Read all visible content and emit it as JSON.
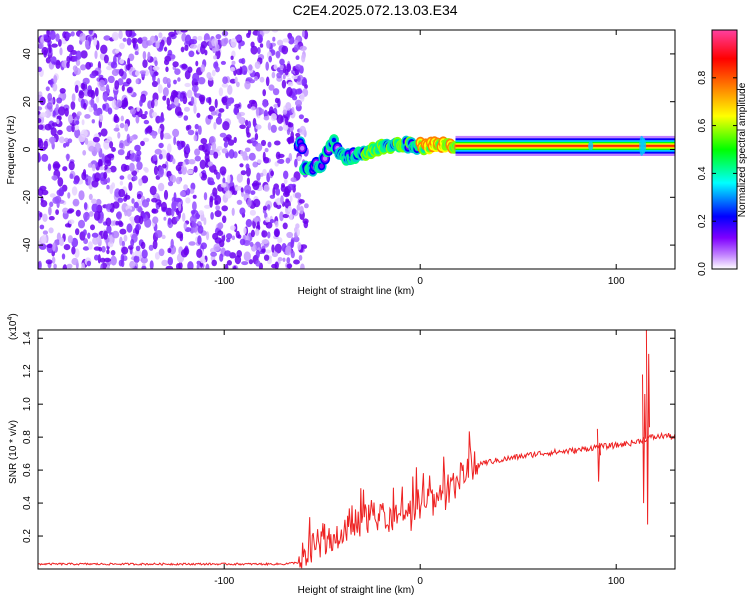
{
  "title": "C2E4.2025.072.13.03.E34",
  "chart_data": [
    {
      "type": "heatmap",
      "xlabel": "Height of straight line (km)",
      "ylabel": "Frequency (Hz)",
      "xlim": [
        -195,
        130
      ],
      "ylim": [
        -50,
        50
      ],
      "xticks": [
        -100,
        0,
        100
      ],
      "xtick_labels": [
        "-100",
        "0",
        "100"
      ],
      "yticks": [
        -40,
        -20,
        0,
        20,
        40
      ],
      "ytick_labels": [
        "-40",
        "-20",
        "0",
        "20",
        "40"
      ],
      "colorbar": {
        "label": "Normalized spectral amplitude",
        "range": [
          0.0,
          1.0
        ],
        "ticks": [
          0.0,
          0.2,
          0.4,
          0.6,
          0.8
        ],
        "tick_labels": [
          "0.0",
          "0.2",
          "0.4",
          "0.6",
          "0.8"
        ],
        "colors": [
          "#ffffff",
          "#c080ff",
          "#7f00ff",
          "#0000ff",
          "#00ffff",
          "#00ff00",
          "#ffff00",
          "#ff8000",
          "#ff0000",
          "#ff40a0"
        ]
      },
      "noise_region": {
        "x": [
          -195,
          -62
        ],
        "freq": [
          -50,
          50
        ]
      },
      "signal_track": [
        {
          "x": -60,
          "freq": -9
        },
        {
          "x": -50,
          "freq": -6
        },
        {
          "x": -45,
          "freq": 4
        },
        {
          "x": -40,
          "freq": -3
        },
        {
          "x": -30,
          "freq": -2
        },
        {
          "x": -20,
          "freq": 1
        },
        {
          "x": -10,
          "freq": 2
        },
        {
          "x": 0,
          "freq": 1.5
        },
        {
          "x": 10,
          "freq": 2
        },
        {
          "x": 20,
          "freq": 1.5
        },
        {
          "x": 130,
          "freq": 1.5
        }
      ]
    },
    {
      "type": "line",
      "xlabel": "Height of straight line (km)",
      "ylabel": "SNR (10 * v/v)",
      "scale_label": "(x10",
      "scale_exponent": "4",
      "scale_suffix": ")",
      "xlim": [
        -195,
        130
      ],
      "ylim": [
        0,
        1.45
      ],
      "xticks": [
        -100,
        0,
        100
      ],
      "xtick_labels": [
        "-100",
        "0",
        "100"
      ],
      "yticks": [
        0.2,
        0.4,
        0.6,
        0.8,
        1.0,
        1.2,
        1.4
      ],
      "ytick_labels": [
        "0.2",
        "0.4",
        "0.6",
        "0.8",
        "1.0",
        "1.2",
        "1.4"
      ],
      "color": "#ee2222",
      "series": [
        {
          "x": [
            -195,
            -150,
            -100,
            -70,
            -62,
            -55,
            -50,
            -45,
            -40,
            -35,
            -30,
            -25,
            -20,
            -15,
            -10,
            -5,
            0,
            5,
            10,
            15,
            20,
            25,
            30,
            40,
            50,
            60,
            70,
            80,
            90,
            100,
            110,
            115,
            118,
            120,
            125,
            130
          ],
          "y": [
            0.03,
            0.03,
            0.03,
            0.03,
            0.04,
            0.12,
            0.2,
            0.18,
            0.22,
            0.28,
            0.3,
            0.32,
            0.35,
            0.3,
            0.36,
            0.33,
            0.4,
            0.42,
            0.44,
            0.48,
            0.55,
            0.6,
            0.64,
            0.66,
            0.68,
            0.7,
            0.71,
            0.72,
            0.74,
            0.75,
            0.77,
            0.79,
            0.8,
            0.8,
            0.81,
            0.8
          ]
        }
      ],
      "spikes": [
        {
          "x": 91,
          "y_min": 0.53,
          "y_max": 0.85
        },
        {
          "x": 114,
          "y_min": 0.4,
          "y_max": 1.18
        },
        {
          "x": 116,
          "y_min": 0.27,
          "y_max": 1.45
        }
      ]
    }
  ]
}
